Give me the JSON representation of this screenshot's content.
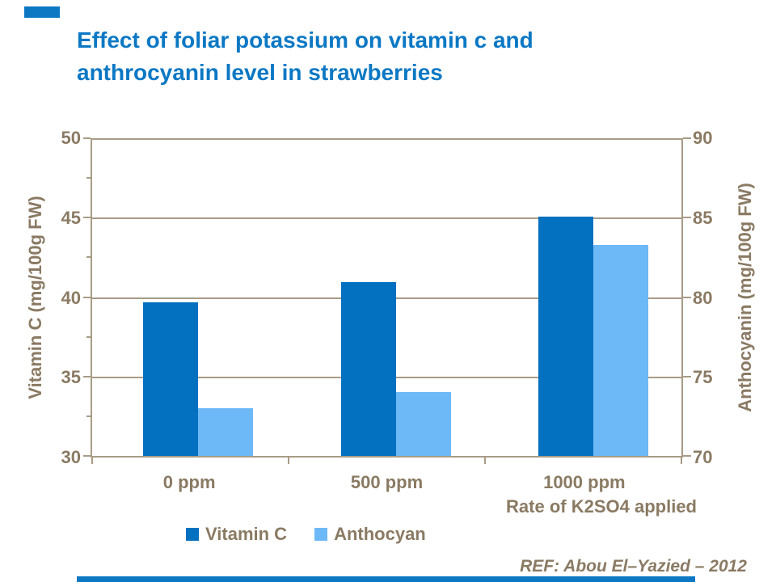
{
  "slide": {
    "title_line1": "Effect of foliar potassium on vitamin c and",
    "title_line2": "anthrocyanin level in strawberries",
    "reference": "REF: Abou El–Yazied – 2012"
  },
  "colors": {
    "title_blue": "#0c78c4",
    "vitamin_c_bar": "#0470c0",
    "anthocyan_bar": "#6db9f7",
    "axis_text_brown": "#8a7a63",
    "gridline_brown": "#a89c86"
  },
  "chart_data": {
    "type": "bar",
    "title": "Effect of foliar potassium on vitamin c and anthrocyanin level in strawberries",
    "categories": [
      "0 ppm",
      "500 ppm",
      "1000 ppm"
    ],
    "series": [
      {
        "name": "Vitamin C",
        "axis": "left",
        "color": "#0470c0",
        "values": [
          39.6,
          40.9,
          45.0
        ]
      },
      {
        "name": "Anthocyan",
        "axis": "right",
        "color": "#6db9f7",
        "values": [
          73.0,
          74.0,
          83.2
        ]
      }
    ],
    "xlabel": "Rate of K2SO4 applied",
    "left_axis": {
      "label": "Vitamin C (mg/100g FW)",
      "min": 30,
      "max": 50,
      "ticks": [
        50,
        45,
        40,
        35,
        30
      ]
    },
    "right_axis": {
      "label": "Anthocyanin (mg/100g FW)",
      "min": 70,
      "max": 90,
      "ticks": [
        90,
        85,
        80,
        75,
        70
      ]
    },
    "grid": true,
    "legend_position": "bottom"
  }
}
